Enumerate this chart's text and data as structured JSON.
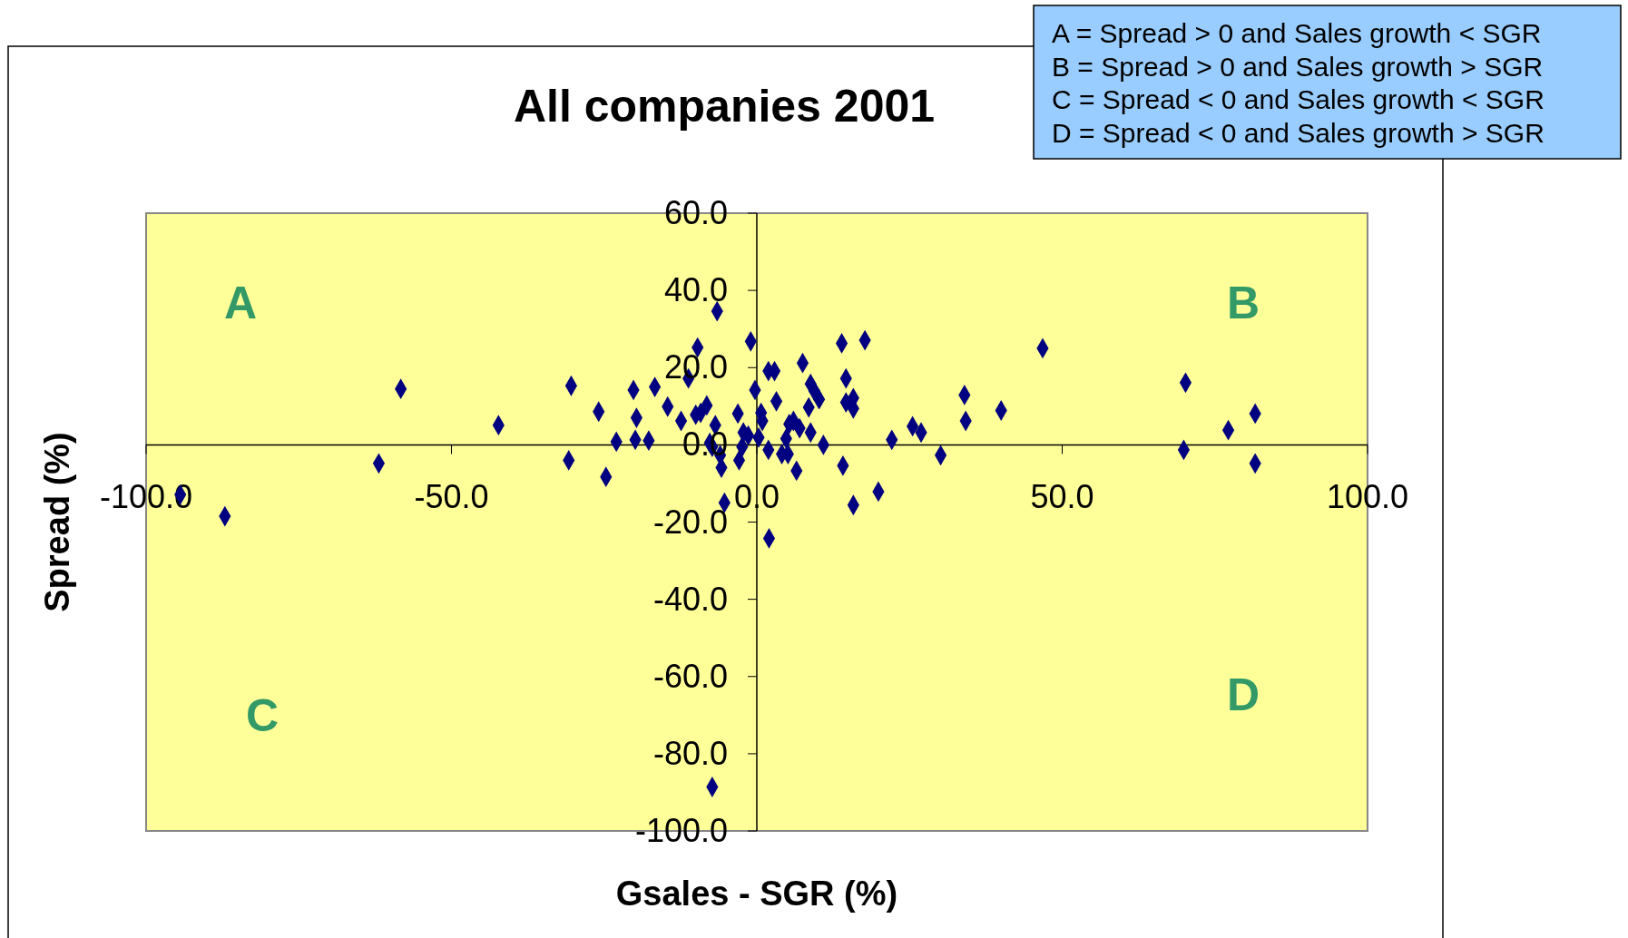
{
  "chart_data": {
    "type": "scatter",
    "title": "All companies 2001",
    "xlabel": "Gsales - SGR (%)",
    "ylabel": "Spread (%)",
    "marker": "diamond",
    "grid": false,
    "xlim": [
      -100,
      100
    ],
    "xticks": [
      {
        "value": -100,
        "label": "-100.0"
      },
      {
        "value": -50,
        "label": "-50.0"
      },
      {
        "value": 0,
        "label": "0.0"
      },
      {
        "value": 50,
        "label": "50.0"
      },
      {
        "value": 100,
        "label": "100.0"
      }
    ],
    "ylim": [
      -100,
      60
    ],
    "yticks": [
      {
        "value": -100,
        "label": "-100.0"
      },
      {
        "value": -80,
        "label": "-80.0"
      },
      {
        "value": -60,
        "label": "-60.0"
      },
      {
        "value": -40,
        "label": "-40.0"
      },
      {
        "value": -20,
        "label": "-20.0"
      },
      {
        "value": 0,
        "label": "0.0"
      },
      {
        "value": 20,
        "label": "20.0"
      },
      {
        "value": 40,
        "label": "40.0"
      },
      {
        "value": 60,
        "label": "60.0"
      }
    ],
    "series": [
      {
        "color": "#000080",
        "x": [
          -94.4,
          -87.1,
          -61.9,
          -58.3,
          -42.3,
          -30.8,
          -30.4,
          -25.9,
          -24.7,
          -23.0,
          -20.2,
          -19.7,
          -19.9,
          -17.7,
          -16.7,
          -14.6,
          -12.4,
          -11.2,
          -9.7,
          -10.0,
          -9.2,
          -8.2,
          -7.7,
          -7.3,
          -6.8,
          -6.5,
          -6.0,
          -5.8,
          -5.3,
          -7.3,
          -3.1,
          -2.9,
          -2.4,
          -2.2,
          -1.4,
          -1.0,
          -0.3,
          0.7,
          0.9,
          0.3,
          1.9,
          2.0,
          1.9,
          2.9,
          3.2,
          4.1,
          4.8,
          5.1,
          5.3,
          6.0,
          6.5,
          7.0,
          7.5,
          8.5,
          8.8,
          8.8,
          9.4,
          10.2,
          10.9,
          13.9,
          14.1,
          14.6,
          14.6,
          15.8,
          15.8,
          15.8,
          17.7,
          19.9,
          22.1,
          25.5,
          26.9,
          30.1,
          34.0,
          34.2,
          40.0,
          46.8,
          69.9,
          70.2,
          77.2,
          81.6,
          81.6
        ],
        "values": [
          -12.9,
          -18.5,
          -4.8,
          14.5,
          5.1,
          -4.0,
          15.3,
          8.6,
          -8.3,
          0.8,
          14.2,
          7.0,
          1.3,
          1.1,
          15.0,
          9.9,
          6.2,
          17.2,
          25.2,
          7.8,
          8.3,
          10.2,
          0.5,
          -0.5,
          5.1,
          34.6,
          -2.7,
          -5.9,
          -15.0,
          -88.6,
          8.1,
          -4.0,
          -0.5,
          3.2,
          2.4,
          26.8,
          14.2,
          8.3,
          6.2,
          1.9,
          -1.3,
          -24.2,
          19.1,
          19.1,
          11.3,
          -2.4,
          1.6,
          -2.4,
          5.4,
          6.2,
          -6.7,
          4.3,
          21.2,
          9.7,
          15.8,
          3.2,
          14.0,
          11.8,
          0.0,
          26.3,
          -5.4,
          17.2,
          11.0,
          12.1,
          9.4,
          -15.6,
          27.1,
          -12.1,
          1.3,
          4.8,
          3.2,
          -2.7,
          12.9,
          6.2,
          8.9,
          25.0,
          -1.3,
          16.1,
          3.8,
          8.1,
          -4.8
        ]
      }
    ],
    "annotations": [
      "A",
      "B",
      "C",
      "D",
      "A = Spread > 0 and Sales growth < SGR",
      "B = Spread > 0 and Sales growth > SGR",
      "C = Spread < 0 and Sales growth < SGR",
      "D = Spread < 0 and Sales growth > SGR"
    ]
  }
}
